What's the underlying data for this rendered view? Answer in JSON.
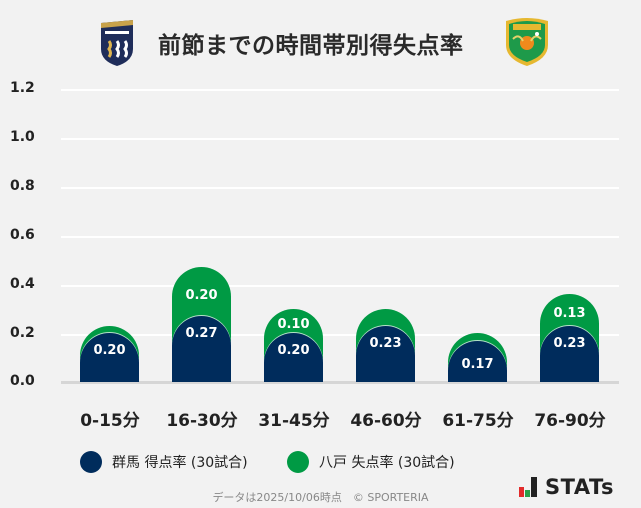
{
  "header": {
    "title": "前節までの時間帯別得失点率",
    "home_logo": "gunma-crest-icon",
    "away_logo": "vanraure-hachinohe-crest-icon"
  },
  "chart_data": {
    "type": "bar",
    "stacked": true,
    "title": "前節までの時間帯別得失点率",
    "xlabel": "",
    "ylabel": "",
    "ylim": [
      0,
      1.2
    ],
    "yticks": [
      "1.2",
      "1.0",
      "0.8",
      "0.6",
      "0.4",
      "0.2",
      "0.0"
    ],
    "grid": true,
    "legend_position": "bottom",
    "categories": [
      "0-15分",
      "16-30分",
      "31-45分",
      "46-60分",
      "61-75分",
      "76-90分"
    ],
    "series": [
      {
        "name": "群馬 得点率 (30試合)",
        "color": "#002c5c",
        "values": [
          0.2,
          0.27,
          0.2,
          0.23,
          0.17,
          0.23
        ],
        "labels": [
          "0.20",
          "0.27",
          "0.20",
          "0.23",
          "0.17",
          "0.23"
        ]
      },
      {
        "name": "八戸 失点率 (30試合)",
        "color": "#009a44",
        "values": [
          0.03,
          0.2,
          0.1,
          0.07,
          0.03,
          0.13
        ],
        "labels": [
          "",
          "0.20",
          "0.10",
          "",
          "",
          "0.13"
        ]
      }
    ]
  },
  "legend": {
    "items": [
      {
        "label": "群馬 得点率 (30試合)",
        "color": "#002c5c"
      },
      {
        "label": "八戸 失点率 (30試合)",
        "color": "#009a44"
      }
    ]
  },
  "footer": {
    "note": "データは2025/10/06時点　© SPORTERIA",
    "brand": "STATs"
  }
}
